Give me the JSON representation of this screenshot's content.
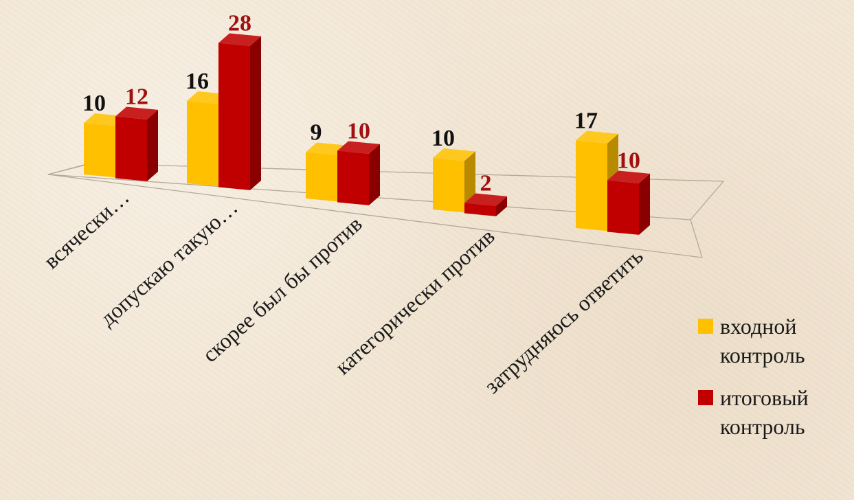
{
  "chart_data": {
    "type": "bar",
    "categories": [
      "всячески…",
      "допускаю такую…",
      "скорее был бы против",
      "категорически против",
      "затрудняюсь ответить"
    ],
    "series": [
      {
        "name": "входной контроль",
        "values": [
          10,
          16,
          9,
          10,
          17
        ],
        "color": "#ffc000",
        "label_color": "#111111"
      },
      {
        "name": "итоговый контроль",
        "values": [
          12,
          28,
          10,
          2,
          10
        ],
        "color": "#c00000",
        "label_color": "#a01010"
      }
    ],
    "legend": {
      "position": "right",
      "items": [
        {
          "line1": "входной",
          "line2": "контроль"
        },
        {
          "line1": "итоговый",
          "line2": "контроль"
        }
      ]
    },
    "grid": false
  }
}
